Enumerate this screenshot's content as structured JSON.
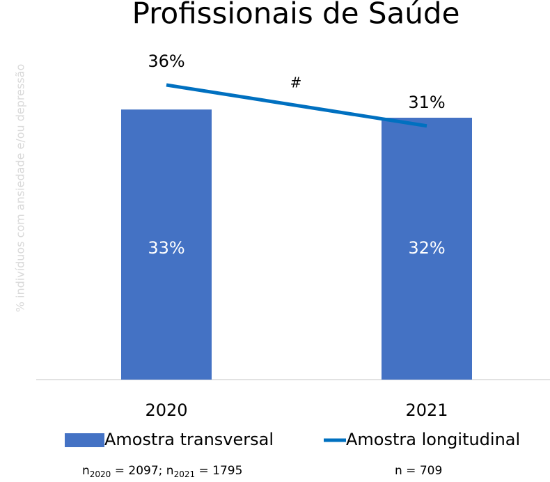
{
  "chart_data": {
    "type": "bar_line",
    "title": "Profissionais de Saúde",
    "y_label": "% indivíduos com ansiedade e/ou depressão",
    "categories": [
      "2020",
      "2021"
    ],
    "series": [
      {
        "name": "Amostra transversal",
        "type": "bar",
        "color": "#4472c4",
        "values": [
          33,
          32
        ],
        "value_labels": [
          "33%",
          "32%"
        ]
      },
      {
        "name": "Amostra longitudinal",
        "type": "line",
        "color": "#0070c0",
        "values": [
          36,
          31
        ],
        "value_labels": [
          "36%",
          "31%"
        ]
      }
    ],
    "annotation": "#",
    "ylim": [
      0,
      40
    ],
    "legend": "bottom",
    "notes": [
      [
        "n",
        "2020",
        " = 2097; n",
        "2021",
        " = 1795"
      ],
      [
        "n = 709"
      ]
    ]
  }
}
